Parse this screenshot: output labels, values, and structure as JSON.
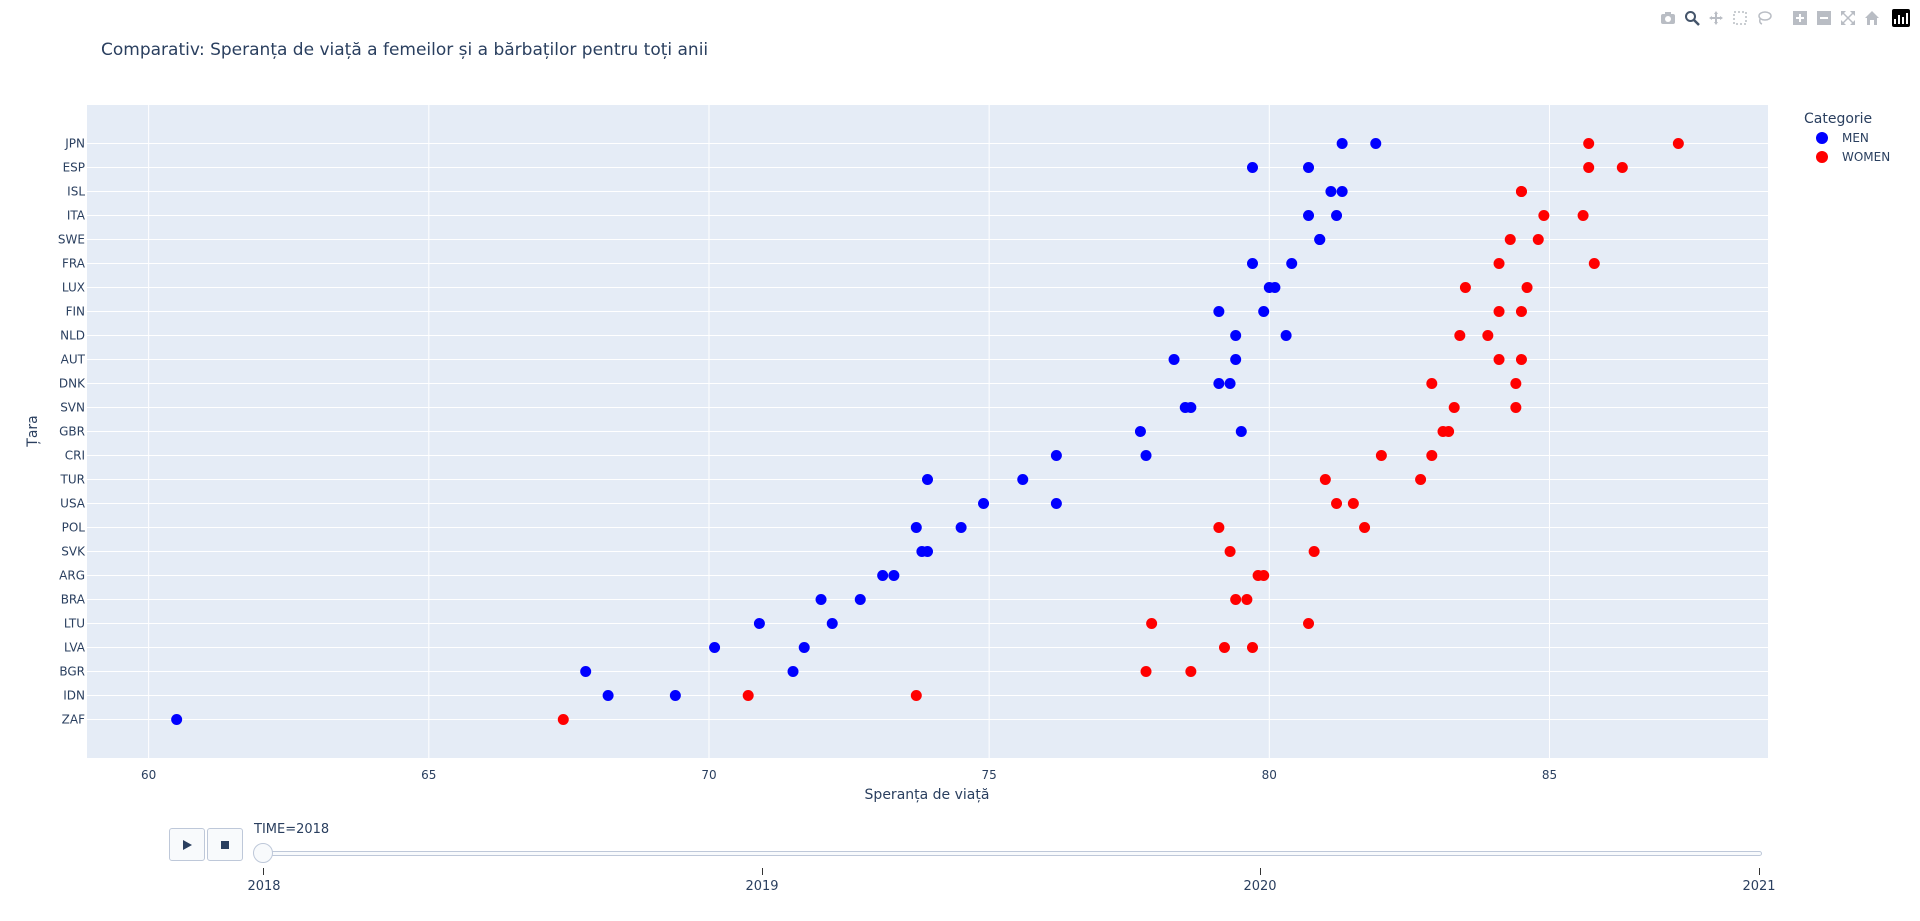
{
  "chart_data": {
    "type": "scatter",
    "title": "Comparativ: Speranța de viață a femeilor și a bărbaților pentru toți anii",
    "xlabel": "Speranța de viață",
    "ylabel": "Țara",
    "xlim": [
      58.9,
      88.9
    ],
    "xticks": [
      60,
      65,
      70,
      75,
      80,
      85
    ],
    "categories": [
      "JPN",
      "ESP",
      "ISL",
      "ITA",
      "SWE",
      "FRA",
      "LUX",
      "FIN",
      "NLD",
      "AUT",
      "DNK",
      "SVN",
      "GBR",
      "CRI",
      "TUR",
      "USA",
      "POL",
      "SVK",
      "ARG",
      "BRA",
      "LTU",
      "LVA",
      "BGR",
      "IDN",
      "ZAF"
    ],
    "legend": {
      "title": "Categorie",
      "position": "top-right"
    },
    "grid": true,
    "series": [
      {
        "name": "MEN",
        "color": "#0000ff",
        "points": [
          {
            "x": 81.3,
            "y": "JPN"
          },
          {
            "x": 81.9,
            "y": "JPN"
          },
          {
            "x": 80.7,
            "y": "ESP"
          },
          {
            "x": 79.7,
            "y": "ESP"
          },
          {
            "x": 81.3,
            "y": "ISL"
          },
          {
            "x": 81.1,
            "y": "ISL"
          },
          {
            "x": 81.2,
            "y": "ITA"
          },
          {
            "x": 80.7,
            "y": "ITA"
          },
          {
            "x": 80.9,
            "y": "SWE"
          },
          {
            "x": 80.9,
            "y": "SWE"
          },
          {
            "x": 79.7,
            "y": "FRA"
          },
          {
            "x": 80.4,
            "y": "FRA"
          },
          {
            "x": 80.1,
            "y": "LUX"
          },
          {
            "x": 80.0,
            "y": "LUX"
          },
          {
            "x": 79.1,
            "y": "FIN"
          },
          {
            "x": 79.9,
            "y": "FIN"
          },
          {
            "x": 80.3,
            "y": "NLD"
          },
          {
            "x": 79.4,
            "y": "NLD"
          },
          {
            "x": 79.4,
            "y": "AUT"
          },
          {
            "x": 78.3,
            "y": "AUT"
          },
          {
            "x": 79.1,
            "y": "DNK"
          },
          {
            "x": 79.3,
            "y": "DNK"
          },
          {
            "x": 78.5,
            "y": "SVN"
          },
          {
            "x": 78.6,
            "y": "SVN"
          },
          {
            "x": 79.5,
            "y": "GBR"
          },
          {
            "x": 77.7,
            "y": "GBR"
          },
          {
            "x": 77.8,
            "y": "CRI"
          },
          {
            "x": 76.2,
            "y": "CRI"
          },
          {
            "x": 75.6,
            "y": "TUR"
          },
          {
            "x": 73.9,
            "y": "TUR"
          },
          {
            "x": 76.2,
            "y": "USA"
          },
          {
            "x": 74.9,
            "y": "USA"
          },
          {
            "x": 73.7,
            "y": "POL"
          },
          {
            "x": 74.5,
            "y": "POL"
          },
          {
            "x": 73.9,
            "y": "SVK"
          },
          {
            "x": 73.8,
            "y": "SVK"
          },
          {
            "x": 73.1,
            "y": "ARG"
          },
          {
            "x": 73.3,
            "y": "ARG"
          },
          {
            "x": 72.0,
            "y": "BRA"
          },
          {
            "x": 72.7,
            "y": "BRA"
          },
          {
            "x": 70.9,
            "y": "LTU"
          },
          {
            "x": 72.2,
            "y": "LTU"
          },
          {
            "x": 70.1,
            "y": "LVA"
          },
          {
            "x": 71.7,
            "y": "LVA"
          },
          {
            "x": 71.5,
            "y": "BGR"
          },
          {
            "x": 67.8,
            "y": "BGR"
          },
          {
            "x": 69.4,
            "y": "IDN"
          },
          {
            "x": 68.2,
            "y": "IDN"
          },
          {
            "x": 60.5,
            "y": "ZAF"
          }
        ]
      },
      {
        "name": "WOMEN",
        "color": "#ff0000",
        "points": [
          {
            "x": 87.3,
            "y": "JPN"
          },
          {
            "x": 85.7,
            "y": "JPN"
          },
          {
            "x": 86.3,
            "y": "ESP"
          },
          {
            "x": 85.7,
            "y": "ESP"
          },
          {
            "x": 84.5,
            "y": "ISL"
          },
          {
            "x": 84.5,
            "y": "ISL"
          },
          {
            "x": 85.6,
            "y": "ITA"
          },
          {
            "x": 84.9,
            "y": "ITA"
          },
          {
            "x": 84.3,
            "y": "SWE"
          },
          {
            "x": 84.8,
            "y": "SWE"
          },
          {
            "x": 85.8,
            "y": "FRA"
          },
          {
            "x": 84.1,
            "y": "FRA"
          },
          {
            "x": 84.6,
            "y": "LUX"
          },
          {
            "x": 83.5,
            "y": "LUX"
          },
          {
            "x": 84.5,
            "y": "FIN"
          },
          {
            "x": 84.1,
            "y": "FIN"
          },
          {
            "x": 83.4,
            "y": "NLD"
          },
          {
            "x": 83.9,
            "y": "NLD"
          },
          {
            "x": 84.1,
            "y": "AUT"
          },
          {
            "x": 84.5,
            "y": "AUT"
          },
          {
            "x": 82.9,
            "y": "DNK"
          },
          {
            "x": 84.4,
            "y": "DNK"
          },
          {
            "x": 84.4,
            "y": "SVN"
          },
          {
            "x": 83.3,
            "y": "SVN"
          },
          {
            "x": 83.1,
            "y": "GBR"
          },
          {
            "x": 83.2,
            "y": "GBR"
          },
          {
            "x": 82.9,
            "y": "CRI"
          },
          {
            "x": 82.0,
            "y": "CRI"
          },
          {
            "x": 81.0,
            "y": "TUR"
          },
          {
            "x": 82.7,
            "y": "TUR"
          },
          {
            "x": 81.2,
            "y": "USA"
          },
          {
            "x": 81.5,
            "y": "USA"
          },
          {
            "x": 81.7,
            "y": "POL"
          },
          {
            "x": 79.1,
            "y": "POL"
          },
          {
            "x": 80.8,
            "y": "SVK"
          },
          {
            "x": 79.3,
            "y": "SVK"
          },
          {
            "x": 79.9,
            "y": "ARG"
          },
          {
            "x": 79.8,
            "y": "ARG"
          },
          {
            "x": 79.4,
            "y": "BRA"
          },
          {
            "x": 79.6,
            "y": "BRA"
          },
          {
            "x": 80.7,
            "y": "LTU"
          },
          {
            "x": 77.9,
            "y": "LTU"
          },
          {
            "x": 79.7,
            "y": "LVA"
          },
          {
            "x": 79.2,
            "y": "LVA"
          },
          {
            "x": 78.6,
            "y": "BGR"
          },
          {
            "x": 77.8,
            "y": "BGR"
          },
          {
            "x": 73.7,
            "y": "IDN"
          },
          {
            "x": 70.7,
            "y": "IDN"
          },
          {
            "x": 67.4,
            "y": "ZAF"
          }
        ]
      }
    ]
  },
  "slider": {
    "current_label": "TIME=2018",
    "current_value": "2018",
    "steps": [
      "2018",
      "2019",
      "2020",
      "2021"
    ]
  },
  "modebar": {
    "icons": [
      "camera-icon",
      "zoom-icon",
      "pan-icon",
      "box-select-icon",
      "lasso-icon",
      "zoom-in-icon",
      "zoom-out-icon",
      "autoscale-icon",
      "home-icon",
      "plotly-logo-icon"
    ]
  }
}
